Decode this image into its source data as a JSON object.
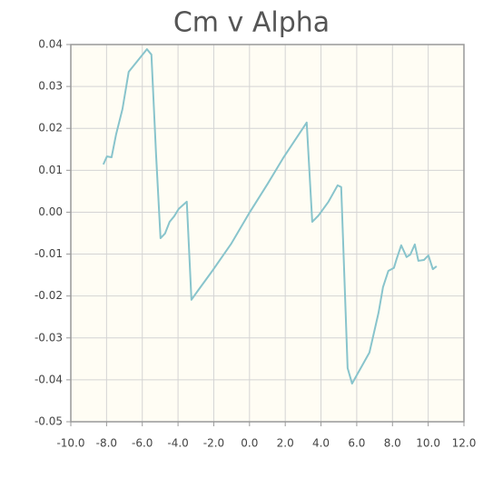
{
  "chart_data": {
    "type": "line",
    "title": "Cm v Alpha",
    "x": [
      -8.18,
      -7.98,
      -7.72,
      -7.47,
      -7.11,
      -6.76,
      -5.74,
      -5.49,
      -5.23,
      -4.98,
      -4.73,
      -4.47,
      -4.22,
      -3.96,
      -3.51,
      -3.25,
      -2.9,
      -2.08,
      -1.02,
      0,
      1.02,
      1.88,
      3.2,
      3.51,
      3.86,
      4.42,
      4.93,
      5.13,
      5.49,
      5.74,
      6.71,
      7.22,
      7.47,
      7.77,
      8.08,
      8.23,
      8.49,
      8.79,
      9.0,
      9.25,
      9.45,
      9.76,
      10.01,
      10.26,
      10.47
    ],
    "series": [
      {
        "color": "#88c4cc",
        "values": [
          0.0114,
          0.0133,
          0.0131,
          0.0185,
          0.0246,
          0.0335,
          0.0389,
          0.0376,
          0.0138,
          -0.0062,
          -0.0051,
          -0.0023,
          -0.001,
          0.0008,
          0.0025,
          -0.0209,
          -0.0188,
          -0.014,
          -0.0075,
          -0.0001,
          0.0068,
          0.0129,
          0.0214,
          -0.0023,
          -0.0008,
          0.0025,
          0.0064,
          0.006,
          -0.0372,
          -0.0409,
          -0.0335,
          -0.024,
          -0.0179,
          -0.014,
          -0.0133,
          -0.0112,
          -0.0079,
          -0.0107,
          -0.0101,
          -0.0077,
          -0.0116,
          -0.0114,
          -0.0103,
          -0.0136,
          -0.0129
        ]
      }
    ],
    "xlim": [
      -10,
      12
    ],
    "xticks": [
      {
        "value": -10,
        "label": "-10.0"
      },
      {
        "value": -8,
        "label": "-8.0"
      },
      {
        "value": -6,
        "label": "-6.0"
      },
      {
        "value": -4,
        "label": "-4.0"
      },
      {
        "value": -2,
        "label": "-2.0"
      },
      {
        "value": 0,
        "label": "0.0"
      },
      {
        "value": 2,
        "label": "2.0"
      },
      {
        "value": 4,
        "label": "4.0"
      },
      {
        "value": 6,
        "label": "6.0"
      },
      {
        "value": 8,
        "label": "8.0"
      },
      {
        "value": 10,
        "label": "10.0"
      },
      {
        "value": 12,
        "label": "12.0"
      }
    ],
    "ylim": [
      -0.05,
      0.04
    ],
    "yticks": [
      -0.05,
      -0.04,
      -0.03,
      -0.02,
      -0.01,
      {
        "value": 0,
        "label": "0.00"
      },
      0.01,
      0.02,
      0.03,
      0.04
    ],
    "grid": true
  }
}
